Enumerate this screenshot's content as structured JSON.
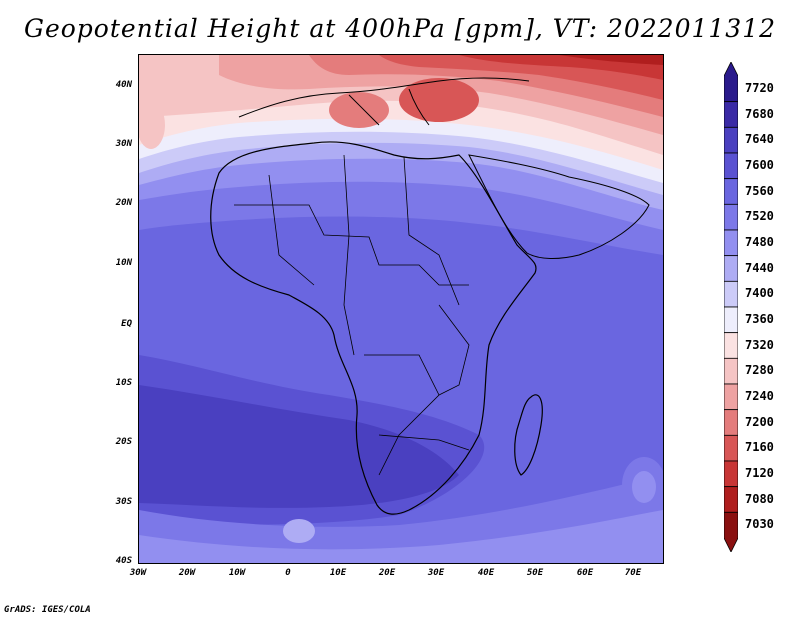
{
  "title": "Geopotential Height at 400hPa [gpm], VT: 2022011312",
  "lat_ticks": [
    "40N",
    "30N",
    "20N",
    "10N",
    "EQ",
    "10S",
    "20S",
    "30S",
    "40S"
  ],
  "lon_ticks": [
    "30W",
    "20W",
    "10W",
    "0",
    "10E",
    "20E",
    "30E",
    "40E",
    "50E",
    "60E",
    "70E"
  ],
  "colorbar": {
    "levels": [
      "7720",
      "7680",
      "7640",
      "7600",
      "7560",
      "7520",
      "7480",
      "7440",
      "7400",
      "7360",
      "7320",
      "7280",
      "7240",
      "7200",
      "7160",
      "7120",
      "7080",
      "7030"
    ],
    "colors": [
      "#2a1a8c",
      "#3a2aa6",
      "#4a40c0",
      "#5a52d2",
      "#6a66e0",
      "#7c78e8",
      "#928ff0",
      "#aeacf4",
      "#cccbf8",
      "#eeeefc",
      "#fbe2e2",
      "#f5c4c4",
      "#eea2a2",
      "#e47c7c",
      "#d85656",
      "#c83636",
      "#b01e1e",
      "#8a1010"
    ]
  },
  "footer": "GrADS: IGES/COLA"
}
